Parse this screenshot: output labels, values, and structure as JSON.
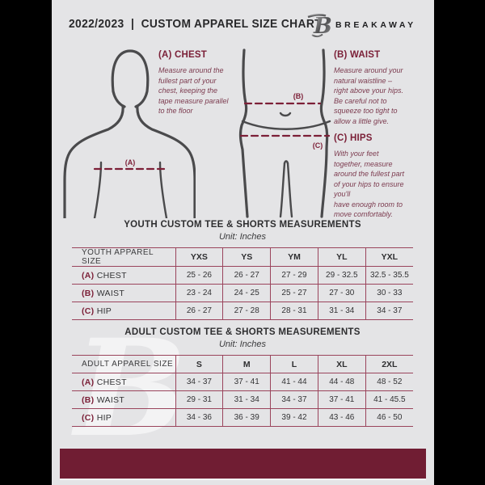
{
  "colors": {
    "accent_maroon": "#701d33",
    "table_line": "#9a445c",
    "figure_gray": "#4a4a4c",
    "page_bg": "#e4e4e6"
  },
  "header": {
    "title": "2022/2023  |  CUSTOM APPAREL SIZE CHART",
    "brand": "BREAKAWAY",
    "logo_letter": "B"
  },
  "instructions": [
    {
      "heading": "(A) CHEST",
      "body": "Measure around the\nfullest part of your\nchest, keeping the\ntape measure parallel\nto the floor"
    },
    {
      "heading": "(B) WAIST",
      "body": "Measure around your\nnatural waistline –\nright above your hips.\nBe careful not to\nsqueeze too tight to\nallow a little give."
    },
    {
      "heading": "(C) HIPS",
      "body": "With your feet\ntogether, measure\naround the fullest part\nof your hips to ensure\nyou'll\nhave enough room to\nmove comfortably."
    }
  ],
  "diagram": {
    "chest_label": "(A)",
    "waist_label": "(B)",
    "hips_label": "(C)"
  },
  "tables": [
    {
      "title": "YOUTH CUSTOM TEE & SHORTS MEASUREMENTS",
      "unit": "Unit: Inches",
      "header": [
        "YOUTH APPAREL SIZE",
        "YXS",
        "YS",
        "YM",
        "YL",
        "YXL"
      ],
      "rows": [
        {
          "prefix": "(A)",
          "label": "CHEST",
          "values": [
            "25 - 26",
            "26 - 27",
            "27 - 29",
            "29 - 32.5",
            "32.5 - 35.5"
          ]
        },
        {
          "prefix": "(B)",
          "label": "WAIST",
          "values": [
            "23 - 24",
            "24 - 25",
            "25 - 27",
            "27 - 30",
            "30 - 33"
          ]
        },
        {
          "prefix": "(C)",
          "label": "HIP",
          "values": [
            "26 - 27",
            "27 - 28",
            "28 - 31",
            "31 - 34",
            "34 - 37"
          ]
        }
      ]
    },
    {
      "title": "ADULT CUSTOM TEE & SHORTS MEASUREMENTS",
      "unit": "Unit: Inches",
      "header": [
        "ADULT APPAREL SIZE",
        "S",
        "M",
        "L",
        "XL",
        "2XL"
      ],
      "rows": [
        {
          "prefix": "(A)",
          "label": "CHEST",
          "values": [
            "34 - 37",
            "37 - 41",
            "41 - 44",
            "44 - 48",
            "48 - 52"
          ]
        },
        {
          "prefix": "(B)",
          "label": "WAIST",
          "values": [
            "29 - 31",
            "31 - 34",
            "34 - 37",
            "37 - 41",
            "41 - 45.5"
          ]
        },
        {
          "prefix": "(C)",
          "label": "HIP",
          "values": [
            "34 - 36",
            "36 - 39",
            "39 - 42",
            "43 - 46",
            "46 - 50"
          ]
        }
      ]
    }
  ],
  "watermark": {
    "letter": "B"
  }
}
